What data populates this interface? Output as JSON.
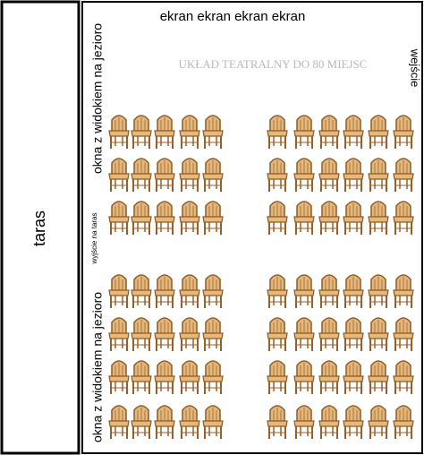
{
  "terrace": {
    "label": "taras"
  },
  "room": {
    "screen": "ekran ekran ekran ekran",
    "title": "UKŁAD TEATRALNY DO 80 MIEJSC",
    "entrance": "wejście",
    "windows_top": "okna z widokiem na jezioro",
    "windows_bottom": "okna z widokiem na jezioro",
    "terrace_exit": "wyjście na taras"
  }
}
